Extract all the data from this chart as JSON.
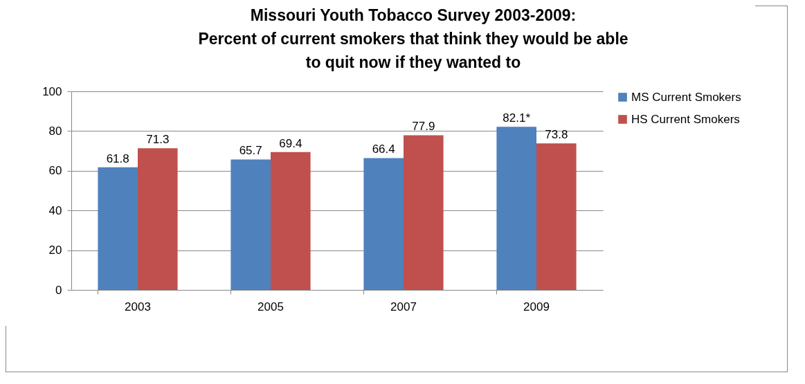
{
  "chart_data": {
    "type": "bar",
    "title": "Missouri Youth Tobacco Survey 2003-2009:\nPercent of current smokers that think they would be able\nto quit now if they wanted to",
    "categories": [
      "2003",
      "2005",
      "2007",
      "2009"
    ],
    "series": [
      {
        "name": "MS Current Smokers",
        "color": "#4f81bd",
        "values": [
          61.8,
          65.7,
          66.4,
          82.1
        ],
        "value_labels": [
          "61.8",
          "65.7",
          "66.4",
          "82.1*"
        ]
      },
      {
        "name": "HS Current Smokers",
        "color": "#c0504d",
        "values": [
          71.3,
          69.4,
          77.9,
          73.8
        ],
        "value_labels": [
          "71.3",
          "69.4",
          "77.9",
          "73.8"
        ]
      }
    ],
    "ylim": [
      0,
      100
    ],
    "yticks": [
      0,
      20,
      40,
      60,
      80,
      100
    ],
    "grid": "y",
    "legend": "right"
  }
}
